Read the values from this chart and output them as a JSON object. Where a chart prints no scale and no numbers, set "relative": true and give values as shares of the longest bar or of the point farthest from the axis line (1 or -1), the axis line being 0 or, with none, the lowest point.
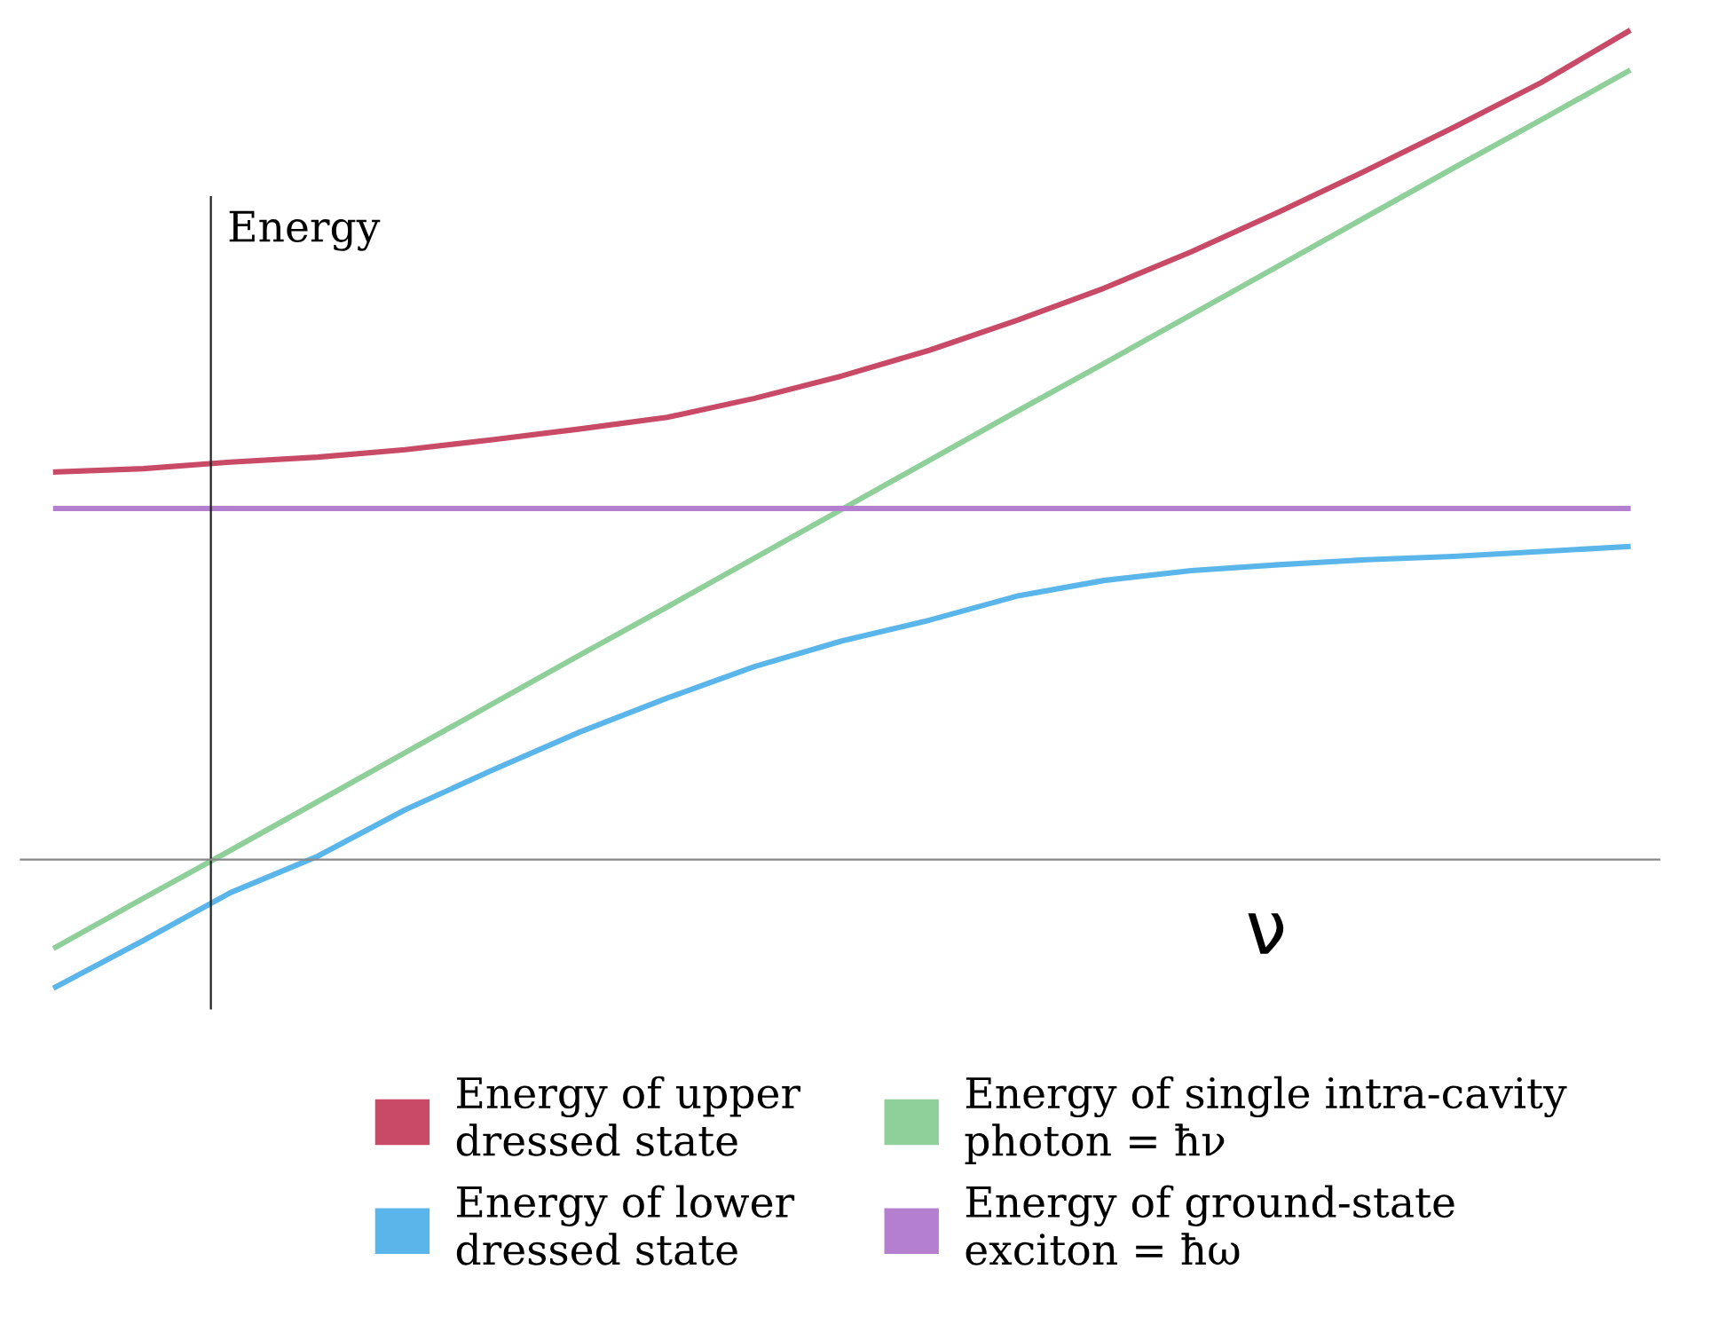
{
  "chart_data": {
    "type": "line",
    "relative": true,
    "xlabel": "ν",
    "ylabel": "Energy",
    "legend": "bottom",
    "marker": "none",
    "line_style": "solid",
    "categories": [
      null,
      null,
      null,
      null,
      null,
      null,
      null,
      null,
      null,
      null,
      null,
      null,
      null,
      null,
      null,
      null,
      null,
      null,
      null
    ],
    "series": [
      {
        "name": "Energy of upper\ndressed state",
        "color": "#c94a66",
        "values": [
          0.468,
          0.472,
          0.48,
          0.486,
          0.495,
          0.507,
          0.52,
          0.534,
          0.557,
          0.584,
          0.615,
          0.651,
          0.69,
          0.734,
          0.782,
          0.832,
          0.884,
          0.938,
          1.0
        ]
      },
      {
        "name": "Energy of lower\ndressed state",
        "color": "#5ab6ea",
        "values": [
          -0.154,
          -0.098,
          -0.04,
          0.004,
          0.06,
          0.108,
          0.154,
          0.195,
          0.233,
          0.264,
          0.289,
          0.318,
          0.337,
          0.349,
          0.356,
          0.362,
          0.366,
          0.372,
          0.378
        ]
      },
      {
        "name": "Energy of single intra-cavity\nphoton = ħν",
        "color": "#8fcf9a",
        "values": [
          -0.106,
          -0.047,
          0.011,
          0.07,
          0.129,
          0.188,
          0.247,
          0.305,
          0.364,
          0.423,
          0.482,
          0.541,
          0.599,
          0.658,
          0.717,
          0.776,
          0.835,
          0.893,
          0.952
        ]
      },
      {
        "name": "Energy of ground-state\nexciton = ħω",
        "color": "#b57fcf",
        "values": [
          0.424,
          0.424,
          0.424,
          0.424,
          0.424,
          0.424,
          0.424,
          0.424,
          0.424,
          0.424,
          0.424,
          0.424,
          0.424,
          0.424,
          0.424,
          0.424,
          0.424,
          0.424,
          0.424
        ]
      }
    ]
  }
}
